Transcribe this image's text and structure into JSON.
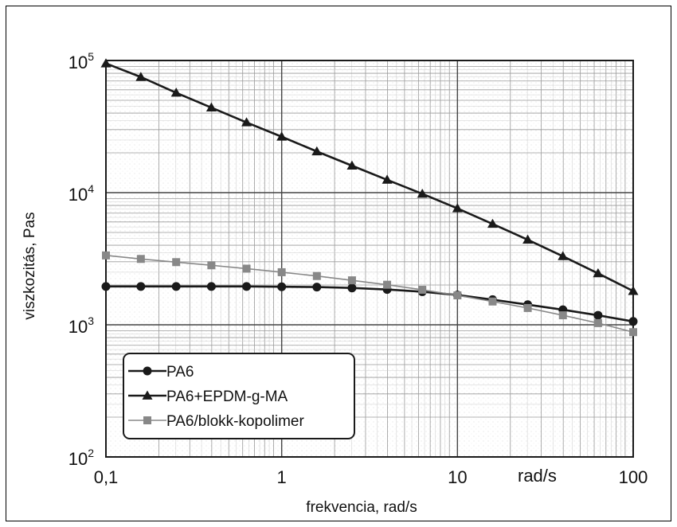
{
  "chart_data": {
    "type": "line",
    "xscale": "log",
    "yscale": "log",
    "xlabel": "frekvencia, rad/s",
    "ylabel": "viszkozitás, Pas",
    "xlim": [
      0.1,
      100
    ],
    "ylim": [
      100,
      100000
    ],
    "x_ticks": [
      {
        "value": 0.1,
        "label": "0,1"
      },
      {
        "value": 1,
        "label": "1"
      },
      {
        "value": 10,
        "label": "10"
      },
      {
        "value": 100,
        "label": "100"
      }
    ],
    "y_ticks": [
      {
        "value": 100,
        "base": "10",
        "exp": "2"
      },
      {
        "value": 1000,
        "base": "10",
        "exp": "3"
      },
      {
        "value": 10000,
        "base": "10",
        "exp": "4"
      },
      {
        "value": 100000,
        "base": "10",
        "exp": "5"
      }
    ],
    "axis_annotation": "rad/s",
    "grid": true,
    "legend": "bottom-left",
    "series": [
      {
        "name": "PA6",
        "marker": "circle",
        "color": "#1a1a1a",
        "x": [
          0.1,
          0.158,
          0.251,
          0.398,
          0.631,
          1.0,
          1.585,
          2.512,
          3.981,
          6.31,
          10,
          15.85,
          25.12,
          39.81,
          63.1,
          100
        ],
        "y": [
          1950,
          1950,
          1950,
          1950,
          1950,
          1940,
          1930,
          1900,
          1850,
          1780,
          1680,
          1550,
          1420,
          1300,
          1180,
          1060
        ]
      },
      {
        "name": "PA6+EPDM-g-MA",
        "marker": "triangle",
        "color": "#1a1a1a",
        "x": [
          0.1,
          0.158,
          0.251,
          0.398,
          0.631,
          1.0,
          1.585,
          2.512,
          3.981,
          6.31,
          10,
          15.85,
          25.12,
          39.81,
          63.1,
          100
        ],
        "y": [
          95000,
          75000,
          57000,
          44000,
          34000,
          26500,
          20500,
          16000,
          12500,
          9800,
          7600,
          5800,
          4400,
          3300,
          2450,
          1800
        ]
      },
      {
        "name": "PA6/blokk-kopolimer",
        "marker": "square",
        "color": "#888888",
        "x": [
          0.1,
          0.158,
          0.251,
          0.398,
          0.631,
          1.0,
          1.585,
          2.512,
          3.981,
          6.31,
          10,
          15.85,
          25.12,
          39.81,
          63.1,
          100
        ],
        "y": [
          3350,
          3150,
          2980,
          2820,
          2660,
          2500,
          2340,
          2170,
          2010,
          1840,
          1670,
          1500,
          1340,
          1180,
          1030,
          880
        ]
      }
    ]
  }
}
